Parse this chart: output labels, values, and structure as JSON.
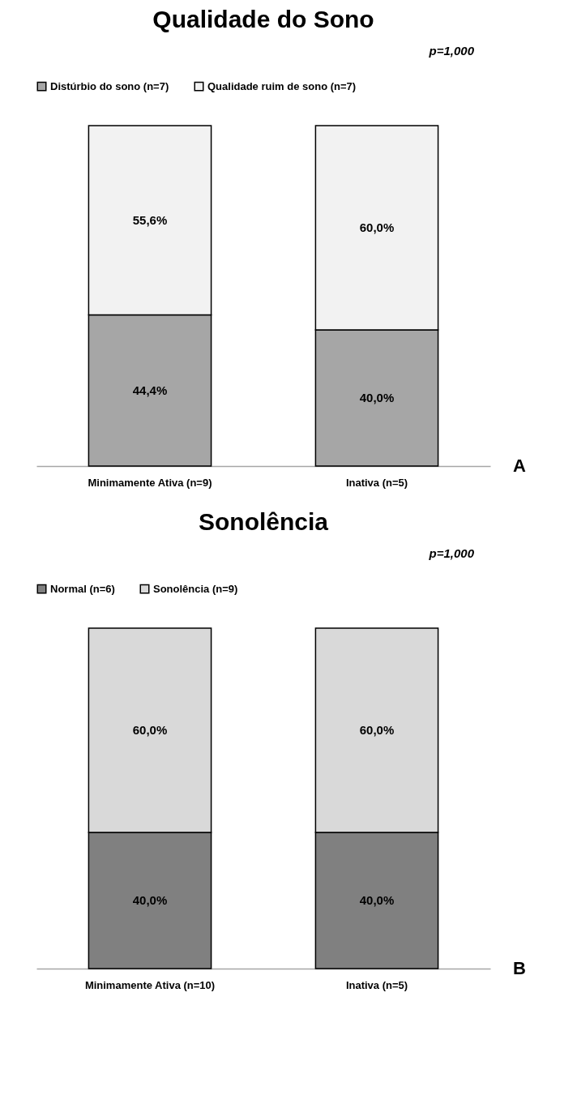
{
  "chart_data": [
    {
      "type": "bar",
      "title": "Qualidade do Sono",
      "annotations": [
        "p=1,000",
        "A"
      ],
      "categories": [
        "Minimamente Ativa (n=9)",
        "Inativa (n=5)"
      ],
      "stacked": true,
      "tick_labels": "x",
      "legend": "top",
      "series": [
        {
          "name": "Distúrbio do sono (n=7)",
          "color": "#a6a6a6",
          "values": [
            44.4,
            40.0
          ],
          "value_labels": [
            "44,4%",
            "40,0%"
          ]
        },
        {
          "name": "Qualidade ruim de sono (n=7)",
          "color": "#f2f2f2",
          "values": [
            55.6,
            60.0
          ],
          "value_labels": [
            "55,6%",
            "60,0%"
          ]
        }
      ]
    },
    {
      "type": "bar",
      "title": "Sonolência",
      "annotations": [
        "p=1,000",
        "B"
      ],
      "categories": [
        "Minimamente Ativa (n=10)",
        "Inativa (n=5)"
      ],
      "stacked": true,
      "tick_labels": "x",
      "legend": "top",
      "series": [
        {
          "name": "Normal (n=6)",
          "color": "#808080",
          "values": [
            40.0,
            40.0
          ],
          "value_labels": [
            "40,0%",
            "40,0%"
          ]
        },
        {
          "name": "Sonolência (n=9)",
          "color": "#d9d9d9",
          "values": [
            60.0,
            60.0
          ],
          "value_labels": [
            "60,0%",
            "60,0%"
          ]
        }
      ]
    }
  ]
}
